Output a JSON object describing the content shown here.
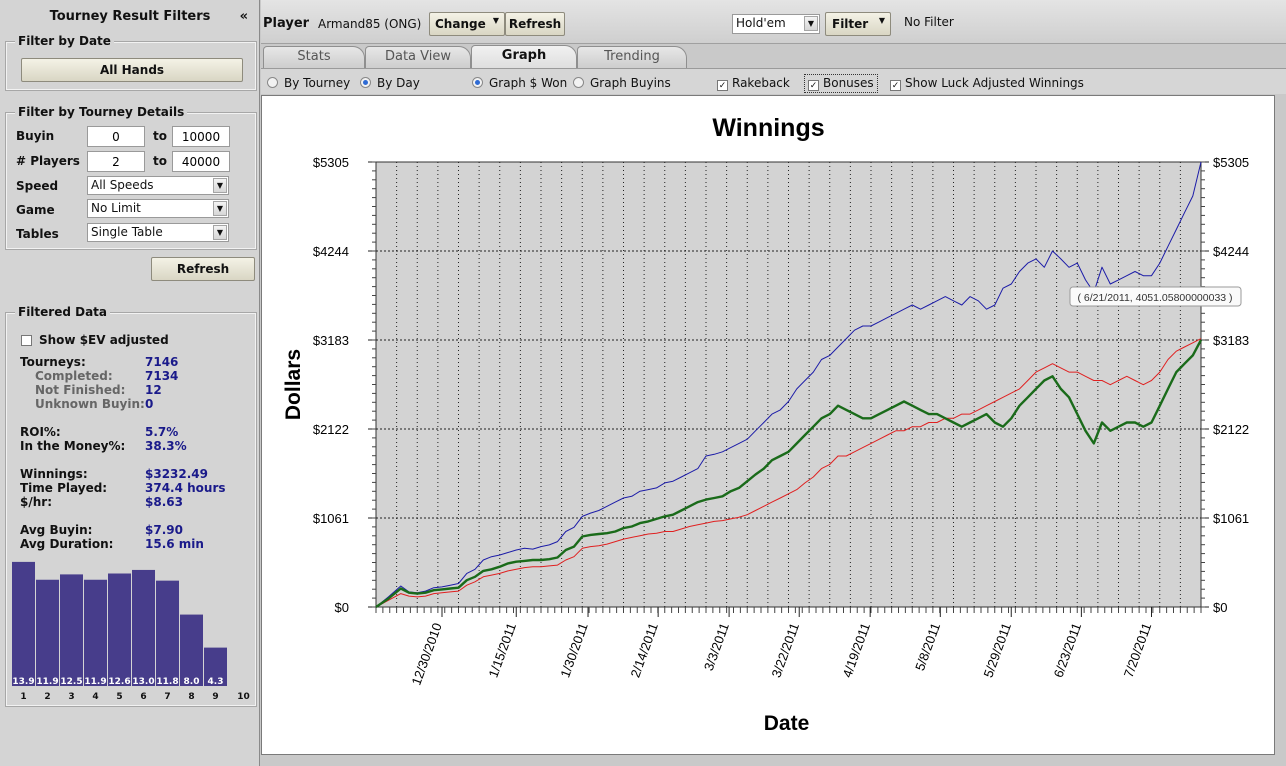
{
  "sidebar": {
    "title": "Tourney Result Filters",
    "collapse_icon": "«",
    "date_group": {
      "title": "Filter by Date",
      "button": "All Hands"
    },
    "details_group": {
      "title": "Filter by Tourney Details",
      "buyin": {
        "label": "Buyin",
        "min": "0",
        "to": "to",
        "max": "10000"
      },
      "players": {
        "label": "# Players",
        "min": "2",
        "to": "to",
        "max": "40000"
      },
      "speed": {
        "label": "Speed",
        "value": "All Speeds"
      },
      "game": {
        "label": "Game",
        "value": "No Limit"
      },
      "tables": {
        "label": "Tables",
        "value": "Single Table"
      }
    },
    "refresh": "Refresh",
    "filtered": {
      "title": "Filtered Data",
      "ev_checkbox": "Show $EV adjusted",
      "tourneys_label": "Tourneys:",
      "tourneys": "7146",
      "completed_label": "Completed:",
      "completed": "7134",
      "not_finished_label": "Not Finished:",
      "not_finished": "12",
      "unknown_label": "Unknown Buyin:",
      "unknown": "0",
      "roi_label": "ROI%:",
      "roi": "5.7%",
      "itm_label": "In the Money%:",
      "itm": "38.3%",
      "winnings_label": "Winnings:",
      "winnings": "$3232.49",
      "time_label": "Time Played:",
      "time": "374.4 hours",
      "hr_label": "$/hr:",
      "hr": "$8.63",
      "avg_buyin_label": "Avg Buyin:",
      "avg_buyin": "$7.90",
      "avg_dur_label": "Avg Duration:",
      "avg_dur": "15.6 min"
    },
    "finish_chart": {
      "type": "bar",
      "categories": [
        "1",
        "2",
        "3",
        "4",
        "5",
        "6",
        "7",
        "8",
        "9",
        "10"
      ],
      "values": [
        13.9,
        11.9,
        12.5,
        11.9,
        12.6,
        13.0,
        11.8,
        8.0,
        4.3,
        null
      ],
      "labels": [
        "13.9",
        "11.9",
        "12.5",
        "11.9",
        "12.6",
        "13.0",
        "11.8",
        "8.0",
        "4.3",
        ""
      ],
      "bar_color": "#473d8b"
    }
  },
  "toolbar": {
    "player_label": "Player",
    "player_value": "Armand85 (ONG)",
    "change": "Change",
    "refresh": "Refresh",
    "game_select": "Hold'em",
    "filter": "Filter",
    "filter_status": "No Filter"
  },
  "tabs": [
    {
      "label": "Stats",
      "active": false
    },
    {
      "label": "Data View",
      "active": false
    },
    {
      "label": "Graph",
      "active": true
    },
    {
      "label": "Trending",
      "active": false
    }
  ],
  "options": {
    "by_tourney": "By Tourney",
    "by_day": "By Day",
    "graph_won": "Graph $ Won",
    "graph_buyins": "Graph Buyins",
    "rakeback": "Rakeback",
    "bonuses": "Bonuses",
    "luck": "Show Luck Adjusted Winnings",
    "check_mark": "✓"
  },
  "chart_data": {
    "type": "line",
    "title": "Winnings",
    "xlabel": "Date",
    "ylabel": "Dollars",
    "ylim": [
      0,
      5305
    ],
    "yticks": [
      "$0",
      "$1061",
      "$2122",
      "$3183",
      "$4244",
      "$5305"
    ],
    "ytick_values": [
      0,
      1061,
      2122,
      3183,
      4244,
      5305
    ],
    "xlim": [
      0,
      100
    ],
    "xticks": [
      {
        "label": "12/30/2010",
        "x": 8
      },
      {
        "label": "1/15/2011",
        "x": 17
      },
      {
        "label": "1/30/2011",
        "x": 25.7
      },
      {
        "label": "2/14/2011",
        "x": 34.2
      },
      {
        "label": "3/3/2011",
        "x": 42.8
      },
      {
        "label": "3/22/2011",
        "x": 51.3
      },
      {
        "label": "4/19/2011",
        "x": 59.9
      },
      {
        "label": "5/8/2011",
        "x": 68.4
      },
      {
        "label": "5/29/2011",
        "x": 77
      },
      {
        "label": "6/23/2011",
        "x": 85.5
      },
      {
        "label": "7/20/2011",
        "x": 94
      }
    ],
    "tooltip": "( 6/21/2011, 4051.05800000033 )",
    "series": [
      {
        "color": "#1c1ca8",
        "width": 1,
        "x": [
          0,
          1.5,
          3,
          4,
          5,
          6,
          7,
          8,
          9,
          10,
          11,
          12,
          13,
          14,
          15,
          16,
          17,
          18,
          19,
          20,
          21,
          22,
          23,
          24,
          25,
          26,
          27,
          28,
          29,
          30,
          31,
          32,
          33,
          34,
          35,
          36,
          37,
          38,
          39,
          40,
          41,
          42,
          43,
          44,
          45,
          46,
          47,
          48,
          49,
          50,
          51,
          52,
          53,
          54,
          55,
          56,
          57,
          58,
          59,
          60,
          61,
          62,
          63,
          64,
          65,
          66,
          67,
          68,
          69,
          70,
          71,
          72,
          73,
          74,
          75,
          76,
          77,
          78,
          79,
          80,
          81,
          82,
          83,
          84,
          85,
          86,
          87,
          88,
          89,
          90,
          91,
          92,
          93,
          94,
          95,
          96,
          97,
          98,
          99,
          100
        ],
        "y": [
          0,
          120,
          250,
          180,
          170,
          190,
          230,
          240,
          260,
          280,
          400,
          450,
          560,
          600,
          620,
          650,
          680,
          700,
          690,
          720,
          740,
          780,
          900,
          950,
          1080,
          1120,
          1150,
          1200,
          1250,
          1300,
          1320,
          1380,
          1400,
          1420,
          1480,
          1500,
          1550,
          1600,
          1650,
          1800,
          1820,
          1850,
          1900,
          1950,
          2000,
          2100,
          2200,
          2300,
          2350,
          2450,
          2600,
          2700,
          2800,
          2950,
          3000,
          3100,
          3200,
          3300,
          3350,
          3350,
          3400,
          3450,
          3500,
          3550,
          3600,
          3550,
          3600,
          3650,
          3700,
          3650,
          3600,
          3700,
          3650,
          3550,
          3600,
          3800,
          3850,
          4000,
          4100,
          4150,
          4050,
          4244,
          4150,
          4050,
          4100,
          3900,
          3750,
          4051,
          3850,
          3900,
          3950,
          4000,
          3950,
          3950,
          4100,
          4300,
          4500,
          4700,
          4900,
          5305
        ]
      },
      {
        "color": "#1a6b1a",
        "width": 2.4,
        "x": [
          0,
          1.5,
          3,
          4,
          5,
          6,
          7,
          8,
          9,
          10,
          11,
          12,
          13,
          14,
          15,
          16,
          17,
          18,
          19,
          20,
          21,
          22,
          23,
          24,
          25,
          26,
          27,
          28,
          29,
          30,
          31,
          32,
          33,
          34,
          35,
          36,
          37,
          38,
          39,
          40,
          41,
          42,
          43,
          44,
          45,
          46,
          47,
          48,
          49,
          50,
          51,
          52,
          53,
          54,
          55,
          56,
          57,
          58,
          59,
          60,
          61,
          62,
          63,
          64,
          65,
          66,
          67,
          68,
          69,
          70,
          71,
          72,
          73,
          74,
          75,
          76,
          77,
          78,
          79,
          80,
          81,
          82,
          83,
          84,
          85,
          86,
          87,
          88,
          89,
          90,
          91,
          92,
          93,
          94,
          95,
          96,
          97,
          98,
          99,
          100
        ],
        "y": [
          0,
          100,
          220,
          170,
          160,
          170,
          200,
          210,
          220,
          230,
          320,
          360,
          430,
          450,
          480,
          520,
          540,
          550,
          560,
          560,
          570,
          590,
          680,
          720,
          840,
          860,
          870,
          880,
          900,
          940,
          960,
          1000,
          1020,
          1050,
          1080,
          1100,
          1150,
          1200,
          1250,
          1280,
          1300,
          1320,
          1380,
          1420,
          1500,
          1580,
          1650,
          1750,
          1800,
          1850,
          1950,
          2050,
          2150,
          2250,
          2300,
          2400,
          2350,
          2300,
          2250,
          2250,
          2300,
          2350,
          2400,
          2450,
          2400,
          2350,
          2300,
          2300,
          2250,
          2200,
          2150,
          2200,
          2250,
          2300,
          2200,
          2150,
          2250,
          2400,
          2500,
          2600,
          2700,
          2750,
          2600,
          2500,
          2300,
          2100,
          1950,
          2200,
          2100,
          2150,
          2200,
          2200,
          2150,
          2200,
          2400,
          2600,
          2800,
          2900,
          3000,
          3183
        ]
      },
      {
        "color": "#e02020",
        "width": 1,
        "x": [
          0,
          1.5,
          3,
          4,
          5,
          6,
          7,
          8,
          9,
          10,
          11,
          12,
          13,
          14,
          15,
          16,
          17,
          18,
          19,
          20,
          21,
          22,
          23,
          24,
          25,
          26,
          27,
          28,
          29,
          30,
          31,
          32,
          33,
          34,
          35,
          36,
          37,
          38,
          39,
          40,
          41,
          42,
          43,
          44,
          45,
          46,
          47,
          48,
          49,
          50,
          51,
          52,
          53,
          54,
          55,
          56,
          57,
          58,
          59,
          60,
          61,
          62,
          63,
          64,
          65,
          66,
          67,
          68,
          69,
          70,
          71,
          72,
          73,
          74,
          75,
          76,
          77,
          78,
          79,
          80,
          81,
          82,
          83,
          84,
          85,
          86,
          87,
          88,
          89,
          90,
          91,
          92,
          93,
          94,
          95,
          96,
          97,
          98,
          99,
          100
        ],
        "y": [
          0,
          80,
          160,
          130,
          120,
          130,
          160,
          170,
          180,
          190,
          260,
          300,
          360,
          380,
          400,
          430,
          450,
          470,
          480,
          480,
          490,
          500,
          560,
          600,
          700,
          720,
          730,
          750,
          780,
          810,
          830,
          850,
          870,
          880,
          900,
          900,
          930,
          960,
          980,
          1000,
          1020,
          1030,
          1050,
          1070,
          1100,
          1150,
          1200,
          1250,
          1300,
          1350,
          1400,
          1480,
          1550,
          1650,
          1700,
          1800,
          1800,
          1850,
          1900,
          1950,
          2000,
          2050,
          2100,
          2100,
          2150,
          2150,
          2200,
          2200,
          2250,
          2250,
          2300,
          2300,
          2350,
          2400,
          2450,
          2500,
          2550,
          2600,
          2700,
          2800,
          2850,
          2900,
          2850,
          2800,
          2800,
          2750,
          2700,
          2700,
          2650,
          2700,
          2750,
          2700,
          2650,
          2700,
          2800,
          2950,
          3050,
          3100,
          3150,
          3200
        ]
      }
    ]
  }
}
